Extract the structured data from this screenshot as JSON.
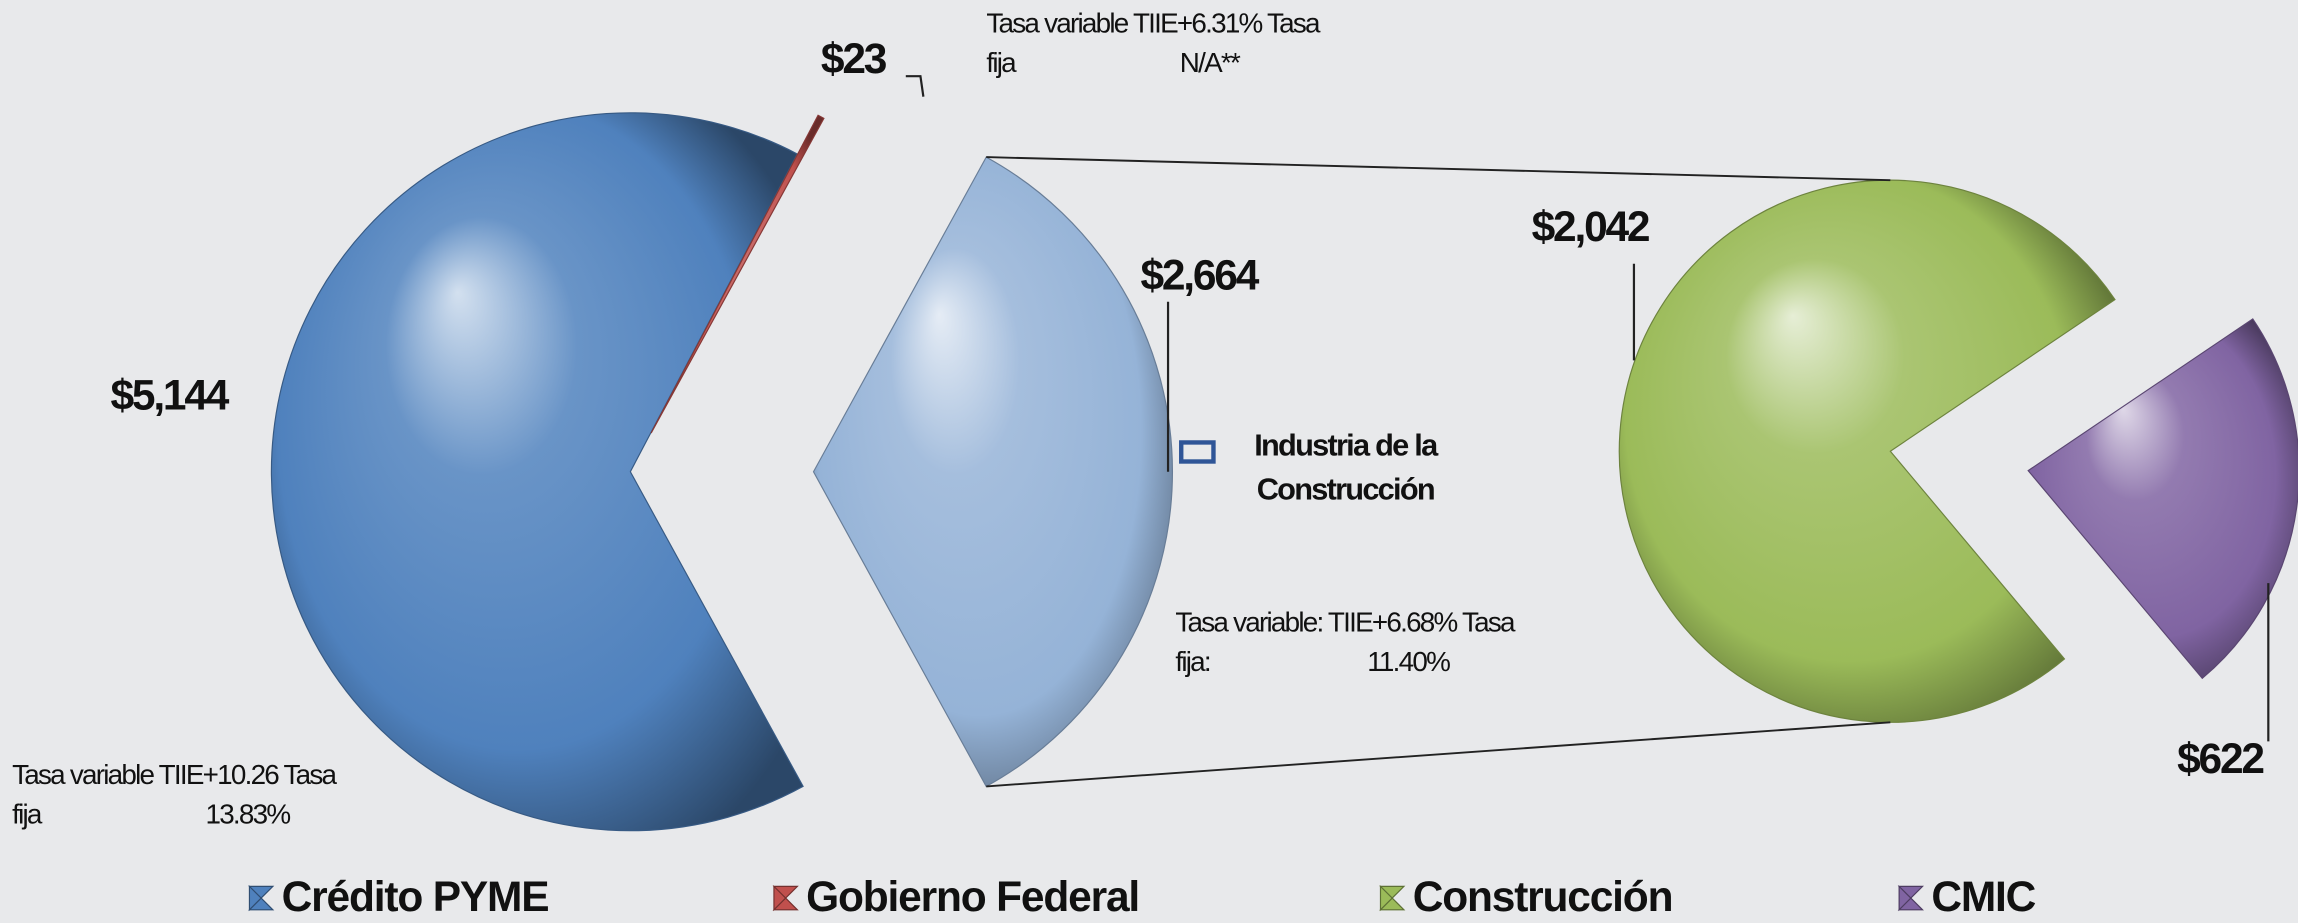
{
  "chart_data": {
    "type": "pie",
    "categories": [
      "Crédito PYME",
      "Gobierno Federal",
      "Industria de la Construcción"
    ],
    "values": [
      5144,
      23,
      2664
    ],
    "value_labels": [
      "$5,144",
      "$23",
      "$2,664"
    ],
    "colors": [
      "#4f81bd",
      "#c0504d",
      "#95b3d7"
    ],
    "annotations": [
      [
        "Tasa variable TIIE+10.26  Tasa",
        "fija",
        "13.83%"
      ],
      [
        "Tasa variable TIIE+6.31%  Tasa",
        "fija",
        "N/A**"
      ],
      [
        "Tasa variable: TIIE+6.68%  Tasa",
        "fija:",
        "11.40%"
      ]
    ],
    "sub": {
      "categories": [
        "Construcción",
        "CMIC"
      ],
      "values": [
        2042,
        622
      ],
      "value_labels": [
        "$2,042",
        "$622"
      ],
      "colors": [
        "#9bbb59",
        "#8064a2"
      ]
    }
  }
}
